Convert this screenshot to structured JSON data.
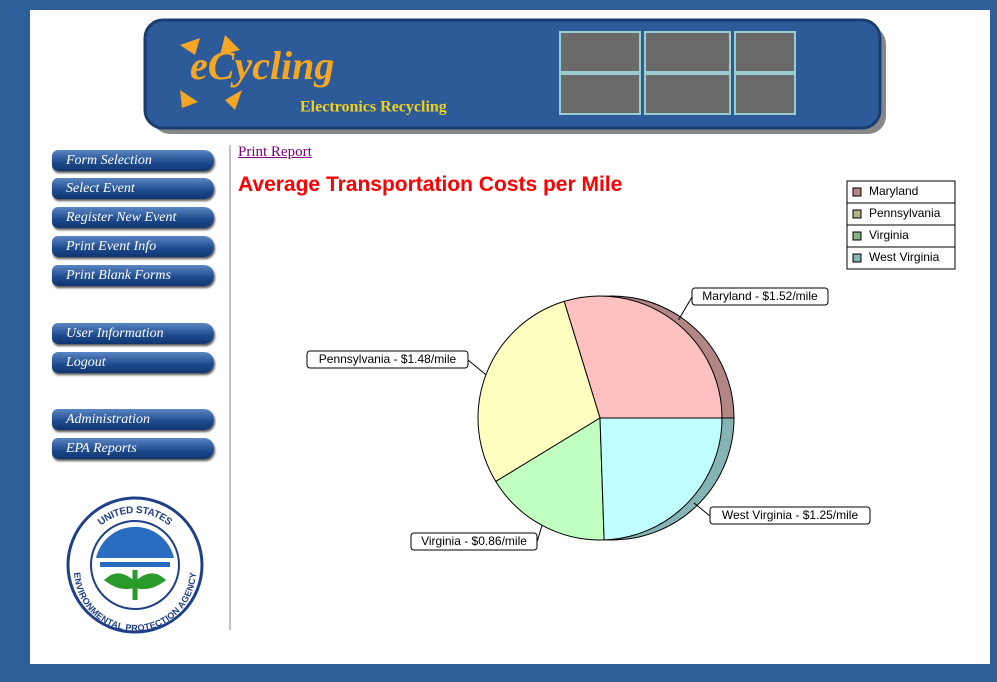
{
  "header": {
    "brand": "eCycling",
    "subtitle": "Electronics Recycling"
  },
  "nav": [
    "Form Selection",
    "Select Event",
    "Register New Event",
    "Print Event Info",
    "Print Blank Forms",
    "User Information",
    "Logout",
    "Administration",
    "EPA Reports"
  ],
  "seal": {
    "top": "UNITED STATES",
    "bottom": "ENVIRONMENTAL PROTECTION AGENCY"
  },
  "report_link": "Print Report",
  "chart_data": {
    "type": "pie",
    "title": "Average Transportation Costs per Mile",
    "categories": [
      "Maryland",
      "Pennsylvania",
      "Virginia",
      "West Virginia"
    ],
    "values": [
      1.52,
      1.48,
      0.86,
      1.25
    ],
    "value_labels": [
      "Maryland - $1.52/mile",
      "Pennsylvania - $1.48/mile",
      "Virginia - $0.86/mile",
      "West Virginia - $1.25/mile"
    ],
    "colors": [
      "#ffc0c0",
      "#ffffc0",
      "#c0ffc0",
      "#c0ffff"
    ],
    "legend": "top-right"
  }
}
